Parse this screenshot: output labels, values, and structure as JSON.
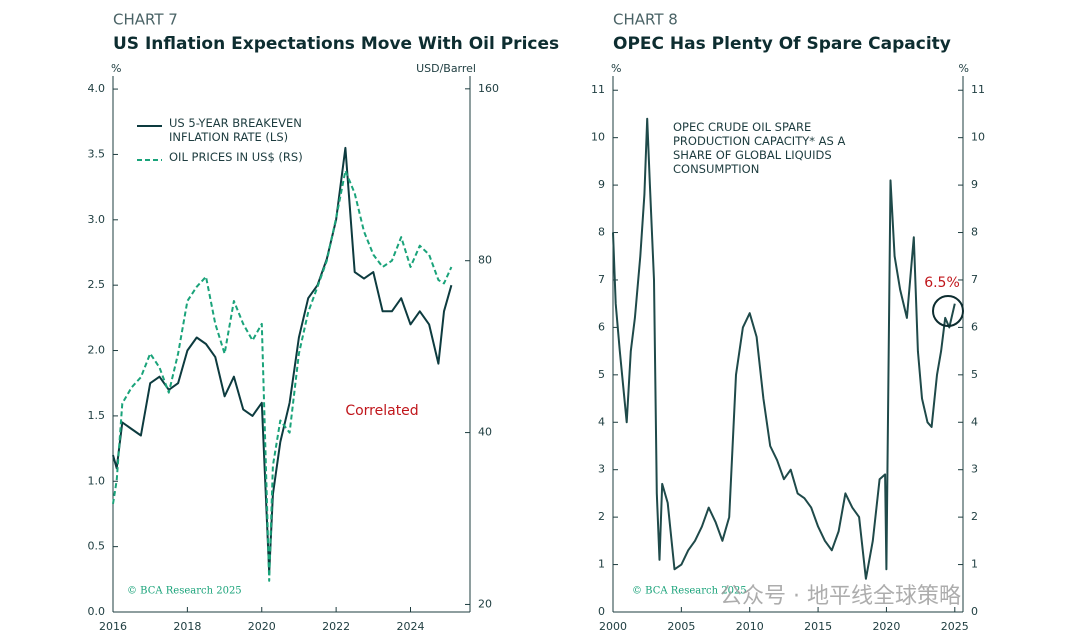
{
  "chart_data": [
    {
      "type": "line",
      "label": "CHART 7",
      "title": "US Inflation Expectations Move With Oil Prices",
      "y_unit": "%",
      "y2_unit": "USD/Barrel",
      "x": [
        2016.0,
        2016.1,
        2016.25,
        2016.5,
        2016.75,
        2017.0,
        2017.25,
        2017.5,
        2017.75,
        2018.0,
        2018.25,
        2018.5,
        2018.75,
        2019.0,
        2019.25,
        2019.5,
        2019.75,
        2020.0,
        2020.2,
        2020.3,
        2020.5,
        2020.75,
        2021.0,
        2021.25,
        2021.5,
        2021.75,
        2022.0,
        2022.25,
        2022.5,
        2022.75,
        2023.0,
        2023.25,
        2023.5,
        2023.75,
        2024.0,
        2024.25,
        2024.5,
        2024.75,
        2024.9,
        2025.1
      ],
      "series": [
        {
          "name": "US 5-YEAR BREAKEVEN INFLATION RATE (LS)",
          "color": "#0d3b3f",
          "axis": "y",
          "values": [
            1.2,
            1.1,
            1.45,
            1.4,
            1.35,
            1.75,
            1.8,
            1.7,
            1.75,
            2.0,
            2.1,
            2.05,
            1.95,
            1.65,
            1.8,
            1.55,
            1.5,
            1.6,
            0.3,
            0.9,
            1.3,
            1.6,
            2.1,
            2.4,
            2.5,
            2.7,
            3.0,
            3.55,
            2.6,
            2.55,
            2.6,
            2.3,
            2.3,
            2.4,
            2.2,
            2.3,
            2.2,
            1.9,
            2.3,
            2.5
          ]
        },
        {
          "name": "OIL PRICES IN US$ (RS)",
          "color": "#1aa37a",
          "axis": "y2",
          "dashed": true,
          "values": [
            30,
            33,
            45,
            48,
            50,
            55,
            52,
            47,
            55,
            68,
            72,
            75,
            62,
            55,
            68,
            62,
            58,
            62,
            22,
            35,
            42,
            40,
            55,
            65,
            72,
            80,
            95,
            115,
            105,
            90,
            82,
            78,
            80,
            88,
            78,
            85,
            82,
            74,
            73,
            78
          ]
        }
      ],
      "xlim": [
        2016,
        2025.6
      ],
      "xticks": [
        2016,
        2018,
        2020,
        2022,
        2024
      ],
      "ylim": [
        0,
        4.1
      ],
      "yticks": [
        {
          "value": 0,
          "label": "0.0"
        },
        0.5,
        {
          "value": 1,
          "label": "1.0"
        },
        1.5,
        {
          "value": 2,
          "label": "2.0"
        },
        2.5,
        {
          "value": 3,
          "label": "3.0"
        },
        3.5,
        {
          "value": 4,
          "label": "4.0"
        }
      ],
      "y2lim": [
        19.4,
        168.5
      ],
      "y2log": true,
      "y2ticks": [
        20,
        40,
        80,
        160
      ],
      "annotations": [
        "Correlated"
      ],
      "source": "© BCA Research 2025"
    },
    {
      "type": "line",
      "label": "CHART 8",
      "title": "OPEC Has Plenty Of Spare Capacity",
      "y_unit": "%",
      "y2_unit": "%",
      "x": [
        2000.0,
        2000.2,
        2000.5,
        2001.0,
        2001.3,
        2001.6,
        2002.0,
        2002.3,
        2002.5,
        2002.7,
        2003.0,
        2003.2,
        2003.4,
        2003.6,
        2004.0,
        2004.5,
        2005.0,
        2005.5,
        2006.0,
        2006.5,
        2007.0,
        2007.5,
        2008.0,
        2008.5,
        2009.0,
        2009.5,
        2010.0,
        2010.5,
        2011.0,
        2011.5,
        2012.0,
        2012.5,
        2013.0,
        2013.5,
        2014.0,
        2014.5,
        2015.0,
        2015.5,
        2016.0,
        2016.5,
        2017.0,
        2017.5,
        2018.0,
        2018.5,
        2019.0,
        2019.5,
        2019.9,
        2020.0,
        2020.3,
        2020.6,
        2021.0,
        2021.5,
        2022.0,
        2022.3,
        2022.6,
        2023.0,
        2023.3,
        2023.7,
        2024.0,
        2024.3,
        2024.6,
        2025.0
      ],
      "series": [
        {
          "name": "OPEC CRUDE OIL SPARE PRODUCTION CAPACITY* AS A SHARE OF GLOBAL LIQUIDS CONSUMPTION",
          "color": "#1f4a4a",
          "axis": "y",
          "values": [
            8.0,
            6.5,
            5.5,
            4.0,
            5.5,
            6.2,
            7.5,
            8.8,
            10.4,
            9.0,
            7.0,
            2.5,
            1.1,
            2.7,
            2.3,
            0.9,
            1.0,
            1.3,
            1.5,
            1.8,
            2.2,
            1.9,
            1.5,
            2.0,
            5.0,
            6.0,
            6.3,
            5.8,
            4.5,
            3.5,
            3.2,
            2.8,
            3.0,
            2.5,
            2.4,
            2.2,
            1.8,
            1.5,
            1.3,
            1.7,
            2.5,
            2.2,
            2.0,
            0.7,
            1.5,
            2.8,
            2.9,
            0.9,
            9.1,
            7.5,
            6.8,
            6.2,
            7.9,
            5.5,
            4.5,
            4.0,
            3.9,
            5.0,
            5.5,
            6.2,
            6.0,
            6.5
          ]
        }
      ],
      "xlim": [
        2000,
        2025.6
      ],
      "xticks": [
        2000,
        2005,
        2010,
        2015,
        2020,
        2025
      ],
      "ylim": [
        0,
        11.3
      ],
      "yticks": [
        0,
        1,
        2,
        3,
        4,
        5,
        6,
        7,
        8,
        9,
        10,
        11
      ],
      "y2lim": [
        0,
        11.3
      ],
      "y2ticks": [
        0,
        1,
        2,
        3,
        4,
        5,
        6,
        7,
        8,
        9,
        10,
        11
      ],
      "annotations": [
        "6.5%"
      ],
      "source": "© BCA Research 2025"
    }
  ],
  "watermark": "公众号 · 地平线全球策略"
}
